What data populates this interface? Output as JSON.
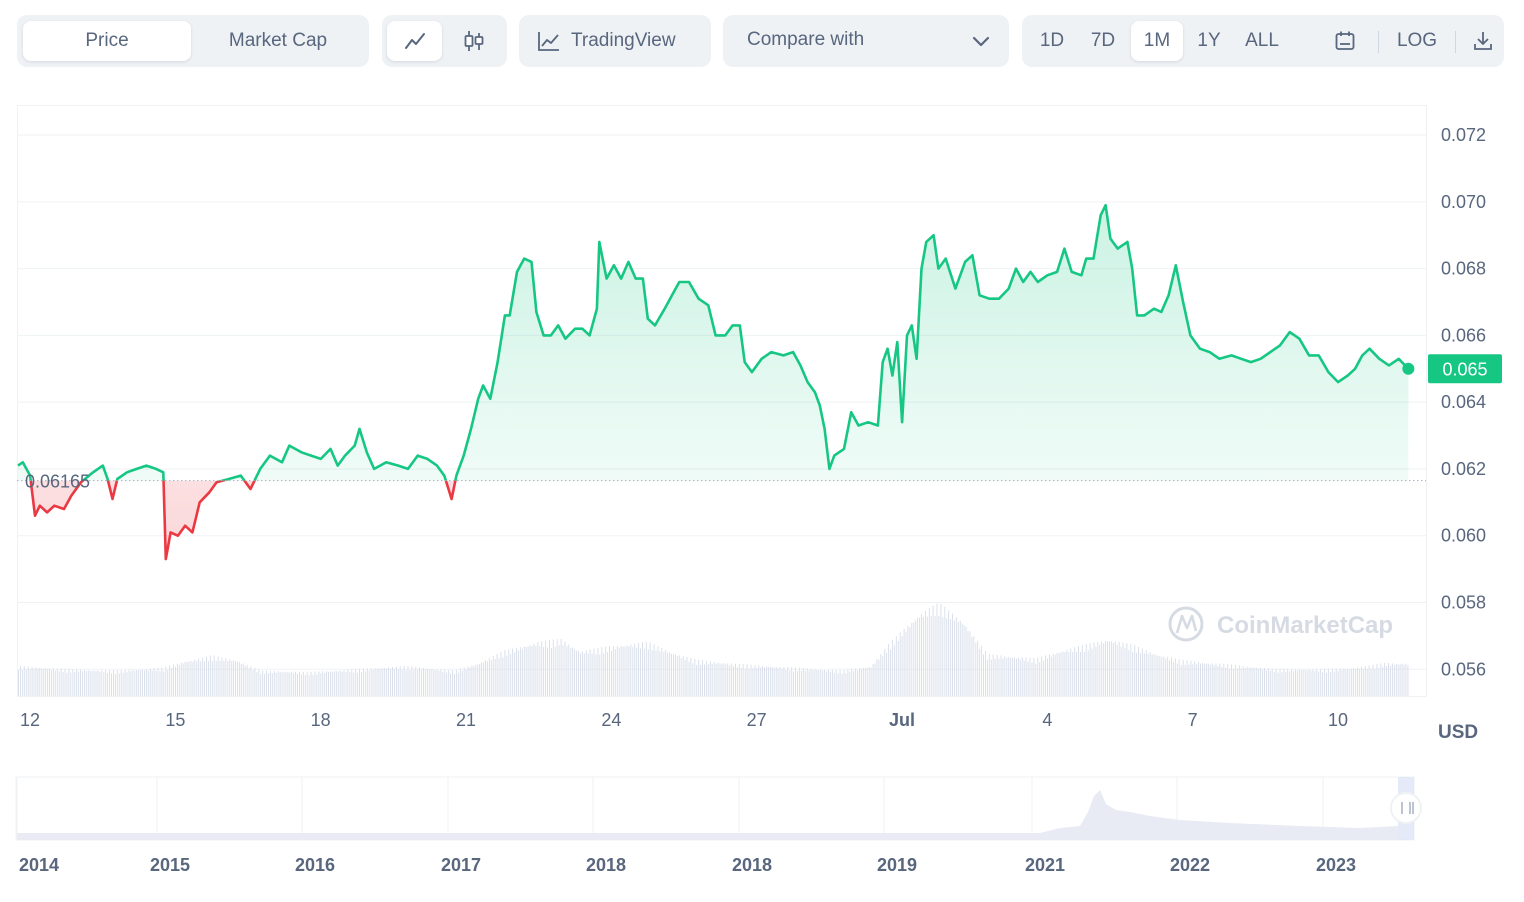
{
  "toolbar": {
    "type_tabs": [
      {
        "label": "Price",
        "active": true
      },
      {
        "label": "Market Cap",
        "active": false
      }
    ],
    "style_icons": [
      "line-chart-icon",
      "candlestick-icon"
    ],
    "tradingview_label": "TradingView",
    "compare_label": "Compare with",
    "ranges": [
      {
        "label": "1D",
        "active": false
      },
      {
        "label": "7D",
        "active": false
      },
      {
        "label": "1M",
        "active": true
      },
      {
        "label": "1Y",
        "active": false
      },
      {
        "label": "ALL",
        "active": false
      }
    ],
    "log_label": "LOG",
    "icons": [
      "calendar-icon",
      "download-icon"
    ]
  },
  "currency_label": "USD",
  "watermark": "CoinMarketCap",
  "colors": {
    "up": "#16c784",
    "down": "#ea3943",
    "badge": "#16c784",
    "grid": "#eff2f5"
  },
  "chart_data": {
    "type": "line",
    "baseline": 0.06165,
    "baseline_label": "0.06165",
    "current_price_label": "0.065",
    "ylim": [
      0.0552,
      0.0729
    ],
    "y_ticks": [
      0.072,
      0.07,
      0.068,
      0.066,
      0.064,
      0.062,
      0.06,
      0.058,
      0.056
    ],
    "y_tick_labels": [
      "0.072",
      "0.070",
      "0.068",
      "0.066",
      "0.064",
      "0.062",
      "0.060",
      "0.058",
      "0.056"
    ],
    "x_ticks": [
      {
        "label": "12",
        "day": 0.0
      },
      {
        "label": "15",
        "day": 3.0
      },
      {
        "label": "18",
        "day": 6.0
      },
      {
        "label": "21",
        "day": 9.0
      },
      {
        "label": "24",
        "day": 12.0
      },
      {
        "label": "27",
        "day": 15.0
      },
      {
        "label": "Jul",
        "day": 18.0,
        "bold": true
      },
      {
        "label": "4",
        "day": 21.0
      },
      {
        "label": "7",
        "day": 24.0
      },
      {
        "label": "10",
        "day": 27.0
      }
    ],
    "x_range_days": [
      0.0,
      30.0
    ],
    "price_series": [
      [
        0.0,
        0.0621
      ],
      [
        0.1,
        0.0622
      ],
      [
        0.25,
        0.0618
      ],
      [
        0.35,
        0.0606
      ],
      [
        0.45,
        0.0609
      ],
      [
        0.6,
        0.0607
      ],
      [
        0.75,
        0.0609
      ],
      [
        0.95,
        0.0608
      ],
      [
        1.1,
        0.0612
      ],
      [
        1.3,
        0.0616
      ],
      [
        1.55,
        0.0619
      ],
      [
        1.75,
        0.0621
      ],
      [
        1.85,
        0.0617
      ],
      [
        1.95,
        0.0611
      ],
      [
        2.05,
        0.0617
      ],
      [
        2.25,
        0.0619
      ],
      [
        2.45,
        0.062
      ],
      [
        2.65,
        0.0621
      ],
      [
        2.85,
        0.062
      ],
      [
        3.0,
        0.0619
      ],
      [
        3.05,
        0.0593
      ],
      [
        3.15,
        0.0601
      ],
      [
        3.3,
        0.06
      ],
      [
        3.45,
        0.0603
      ],
      [
        3.6,
        0.0601
      ],
      [
        3.75,
        0.061
      ],
      [
        3.95,
        0.0613
      ],
      [
        4.1,
        0.0616
      ],
      [
        4.35,
        0.0617
      ],
      [
        4.6,
        0.0618
      ],
      [
        4.8,
        0.0614
      ],
      [
        5.0,
        0.062
      ],
      [
        5.2,
        0.0624
      ],
      [
        5.45,
        0.0622
      ],
      [
        5.6,
        0.0627
      ],
      [
        5.85,
        0.0625
      ],
      [
        6.05,
        0.0624
      ],
      [
        6.25,
        0.0623
      ],
      [
        6.45,
        0.0626
      ],
      [
        6.6,
        0.0621
      ],
      [
        6.75,
        0.0624
      ],
      [
        6.95,
        0.0627
      ],
      [
        7.05,
        0.0632
      ],
      [
        7.2,
        0.0625
      ],
      [
        7.35,
        0.062
      ],
      [
        7.6,
        0.0622
      ],
      [
        7.85,
        0.0621
      ],
      [
        8.05,
        0.062
      ],
      [
        8.25,
        0.0624
      ],
      [
        8.45,
        0.0623
      ],
      [
        8.65,
        0.0621
      ],
      [
        8.8,
        0.0618
      ],
      [
        8.95,
        0.0611
      ],
      [
        9.05,
        0.0618
      ],
      [
        9.2,
        0.0624
      ],
      [
        9.35,
        0.0632
      ],
      [
        9.5,
        0.0641
      ],
      [
        9.6,
        0.0645
      ],
      [
        9.75,
        0.0641
      ],
      [
        9.9,
        0.0652
      ],
      [
        10.05,
        0.0666
      ],
      [
        10.15,
        0.0666
      ],
      [
        10.3,
        0.0679
      ],
      [
        10.45,
        0.0683
      ],
      [
        10.6,
        0.0682
      ],
      [
        10.7,
        0.0667
      ],
      [
        10.85,
        0.066
      ],
      [
        11.0,
        0.066
      ],
      [
        11.15,
        0.0663
      ],
      [
        11.3,
        0.0659
      ],
      [
        11.5,
        0.0662
      ],
      [
        11.65,
        0.0662
      ],
      [
        11.8,
        0.066
      ],
      [
        11.95,
        0.0668
      ],
      [
        12.0,
        0.0688
      ],
      [
        12.15,
        0.0677
      ],
      [
        12.3,
        0.0681
      ],
      [
        12.45,
        0.0677
      ],
      [
        12.6,
        0.0682
      ],
      [
        12.75,
        0.0677
      ],
      [
        12.9,
        0.0677
      ],
      [
        13.0,
        0.0665
      ],
      [
        13.15,
        0.0663
      ],
      [
        13.35,
        0.0668
      ],
      [
        13.5,
        0.0672
      ],
      [
        13.65,
        0.0676
      ],
      [
        13.85,
        0.0676
      ],
      [
        14.05,
        0.0671
      ],
      [
        14.25,
        0.0669
      ],
      [
        14.4,
        0.066
      ],
      [
        14.6,
        0.066
      ],
      [
        14.75,
        0.0663
      ],
      [
        14.9,
        0.0663
      ],
      [
        15.0,
        0.0652
      ],
      [
        15.15,
        0.0649
      ],
      [
        15.35,
        0.0653
      ],
      [
        15.55,
        0.0655
      ],
      [
        15.8,
        0.0654
      ],
      [
        16.0,
        0.0655
      ],
      [
        16.15,
        0.0651
      ],
      [
        16.3,
        0.0646
      ],
      [
        16.45,
        0.0643
      ],
      [
        16.55,
        0.0639
      ],
      [
        16.65,
        0.0632
      ],
      [
        16.75,
        0.062
      ],
      [
        16.85,
        0.0624
      ],
      [
        17.05,
        0.0626
      ],
      [
        17.2,
        0.0637
      ],
      [
        17.35,
        0.0633
      ],
      [
        17.55,
        0.0634
      ],
      [
        17.75,
        0.0633
      ],
      [
        17.85,
        0.0652
      ],
      [
        17.95,
        0.0656
      ],
      [
        18.05,
        0.0648
      ],
      [
        18.15,
        0.0658
      ],
      [
        18.25,
        0.0634
      ],
      [
        18.35,
        0.066
      ],
      [
        18.45,
        0.0663
      ],
      [
        18.55,
        0.0653
      ],
      [
        18.65,
        0.068
      ],
      [
        18.75,
        0.0688
      ],
      [
        18.9,
        0.069
      ],
      [
        19.0,
        0.068
      ],
      [
        19.15,
        0.0683
      ],
      [
        19.35,
        0.0674
      ],
      [
        19.55,
        0.0682
      ],
      [
        19.7,
        0.0684
      ],
      [
        19.85,
        0.0672
      ],
      [
        20.05,
        0.0671
      ],
      [
        20.25,
        0.0671
      ],
      [
        20.45,
        0.0674
      ],
      [
        20.6,
        0.068
      ],
      [
        20.75,
        0.0676
      ],
      [
        20.9,
        0.0679
      ],
      [
        21.05,
        0.0676
      ],
      [
        21.25,
        0.0678
      ],
      [
        21.45,
        0.0679
      ],
      [
        21.6,
        0.0686
      ],
      [
        21.75,
        0.0679
      ],
      [
        21.95,
        0.0678
      ],
      [
        22.05,
        0.0683
      ],
      [
        22.2,
        0.0683
      ],
      [
        22.35,
        0.0696
      ],
      [
        22.45,
        0.0699
      ],
      [
        22.55,
        0.0689
      ],
      [
        22.7,
        0.0686
      ],
      [
        22.9,
        0.0688
      ],
      [
        23.0,
        0.068
      ],
      [
        23.1,
        0.0666
      ],
      [
        23.25,
        0.0666
      ],
      [
        23.45,
        0.0668
      ],
      [
        23.6,
        0.0667
      ],
      [
        23.75,
        0.0672
      ],
      [
        23.9,
        0.0681
      ],
      [
        24.05,
        0.067
      ],
      [
        24.2,
        0.066
      ],
      [
        24.4,
        0.0656
      ],
      [
        24.6,
        0.0655
      ],
      [
        24.8,
        0.0653
      ],
      [
        25.05,
        0.0654
      ],
      [
        25.25,
        0.0653
      ],
      [
        25.45,
        0.0652
      ],
      [
        25.65,
        0.0653
      ],
      [
        25.85,
        0.0655
      ],
      [
        26.05,
        0.0657
      ],
      [
        26.25,
        0.0661
      ],
      [
        26.45,
        0.0659
      ],
      [
        26.65,
        0.0654
      ],
      [
        26.85,
        0.0654
      ],
      [
        27.05,
        0.0649
      ],
      [
        27.25,
        0.0646
      ],
      [
        27.45,
        0.0648
      ],
      [
        27.6,
        0.065
      ],
      [
        27.75,
        0.0654
      ],
      [
        27.9,
        0.0656
      ],
      [
        28.1,
        0.0653
      ],
      [
        28.3,
        0.0651
      ],
      [
        28.5,
        0.0653
      ],
      [
        28.7,
        0.065
      ]
    ],
    "volume_series": [
      [
        0.0,
        0.2
      ],
      [
        1.0,
        0.18
      ],
      [
        2.0,
        0.17
      ],
      [
        3.0,
        0.19
      ],
      [
        3.4,
        0.23
      ],
      [
        4.0,
        0.27
      ],
      [
        4.5,
        0.24
      ],
      [
        5.0,
        0.17
      ],
      [
        6.0,
        0.16
      ],
      [
        7.0,
        0.18
      ],
      [
        8.0,
        0.2
      ],
      [
        9.0,
        0.17
      ],
      [
        9.5,
        0.22
      ],
      [
        10.0,
        0.3
      ],
      [
        10.7,
        0.36
      ],
      [
        11.2,
        0.38
      ],
      [
        11.6,
        0.3
      ],
      [
        12.4,
        0.34
      ],
      [
        13.0,
        0.36
      ],
      [
        13.5,
        0.29
      ],
      [
        14.0,
        0.24
      ],
      [
        15.0,
        0.21
      ],
      [
        16.0,
        0.19
      ],
      [
        17.0,
        0.17
      ],
      [
        17.6,
        0.2
      ],
      [
        18.0,
        0.36
      ],
      [
        18.6,
        0.55
      ],
      [
        19.0,
        0.62
      ],
      [
        19.5,
        0.5
      ],
      [
        20.0,
        0.28
      ],
      [
        21.0,
        0.25
      ],
      [
        21.5,
        0.3
      ],
      [
        22.0,
        0.34
      ],
      [
        22.5,
        0.38
      ],
      [
        23.0,
        0.34
      ],
      [
        23.5,
        0.28
      ],
      [
        24.0,
        0.24
      ],
      [
        25.0,
        0.21
      ],
      [
        26.0,
        0.18
      ],
      [
        27.0,
        0.18
      ],
      [
        27.6,
        0.19
      ],
      [
        28.2,
        0.22
      ],
      [
        28.7,
        0.22
      ]
    ],
    "navigator_ticks": [
      "2014",
      "2015",
      "2016",
      "2017",
      "2018",
      "2018",
      "2019",
      "2021",
      "2022",
      "2023"
    ]
  }
}
